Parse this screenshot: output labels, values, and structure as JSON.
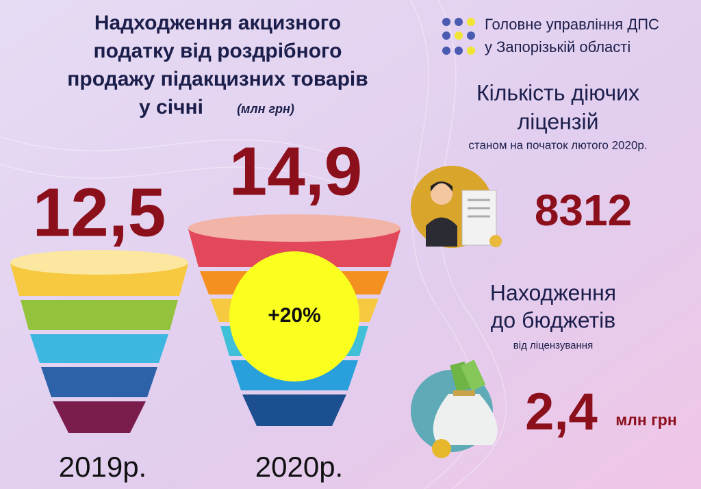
{
  "header": {
    "title_lines": [
      "Надходження акцизного",
      "податку від роздрібного",
      "продажу підакцизних товарів",
      "у січні"
    ],
    "unit": "(млн грн)"
  },
  "org": {
    "lines": [
      "Головне управління ДПС",
      "у Запорізькій області"
    ]
  },
  "excise": {
    "years": [
      {
        "label": "2019р.",
        "value": "12,5"
      },
      {
        "label": "2020р.",
        "value": "14,9"
      }
    ],
    "growth": "+20%"
  },
  "licenses": {
    "title_lines": [
      "Кількість діючих",
      "ліцензій"
    ],
    "subtitle": "станом на початок лютого 2020р.",
    "value": "8312"
  },
  "revenue": {
    "title_lines": [
      "Находження",
      "до бюджетів"
    ],
    "subtitle": "від ліцензування",
    "value": "2,4",
    "unit": "млн грн"
  }
}
